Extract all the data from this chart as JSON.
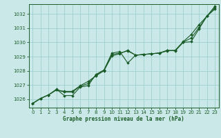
{
  "title": "Graphe pression niveau de la mer (hPa)",
  "bg_color": "#cbe8e8",
  "plot_bg_color": "#cbe8e8",
  "grid_color": "#9ecece",
  "line_color": "#1a5c28",
  "border_color": "#1a5c28",
  "xlim": [
    -0.5,
    23.5
  ],
  "ylim": [
    1025.4,
    1032.7
  ],
  "yticks": [
    1026,
    1027,
    1028,
    1029,
    1030,
    1031,
    1032
  ],
  "xticks": [
    0,
    1,
    2,
    3,
    4,
    5,
    6,
    7,
    8,
    9,
    10,
    11,
    12,
    13,
    14,
    15,
    16,
    17,
    18,
    19,
    20,
    21,
    22,
    23
  ],
  "series": [
    [
      1025.7,
      1026.05,
      1026.3,
      1026.65,
      1026.55,
      1026.55,
      1026.95,
      1027.25,
      1027.65,
      1028.0,
      1029.05,
      1029.2,
      1029.45,
      1029.1,
      1029.15,
      1029.2,
      1029.25,
      1029.4,
      1029.45,
      1030.05,
      1030.55,
      1031.25,
      1031.85,
      1032.35
    ],
    [
      1025.7,
      1026.05,
      1026.3,
      1026.7,
      1026.25,
      1026.25,
      1026.85,
      1026.95,
      1027.75,
      1028.05,
      1029.25,
      1029.35,
      1028.55,
      1029.1,
      1029.15,
      1029.2,
      1029.25,
      1029.45,
      1029.4,
      1030.0,
      1030.05,
      1030.95,
      1031.85,
      1032.55
    ],
    [
      1025.7,
      1026.05,
      1026.3,
      1026.65,
      1026.5,
      1026.5,
      1026.9,
      1027.1,
      1027.7,
      1028.05,
      1029.15,
      1029.25,
      1029.4,
      1029.1,
      1029.15,
      1029.2,
      1029.25,
      1029.42,
      1029.43,
      1030.03,
      1030.3,
      1031.05,
      1031.85,
      1032.45
    ]
  ],
  "tick_fontsize": 5.0,
  "label_fontsize": 5.5,
  "marker": "D",
  "markersize": 1.8,
  "linewidth": 0.8
}
